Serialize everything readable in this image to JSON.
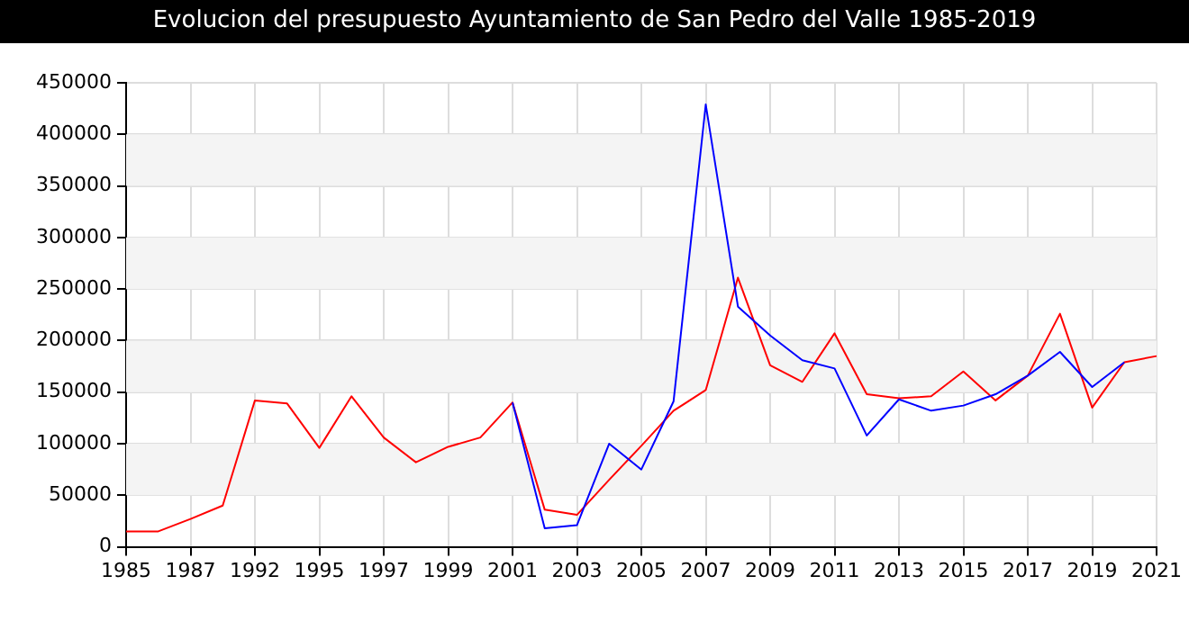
{
  "chart_data": {
    "type": "line",
    "title": "Evolucion del presupuesto Ayuntamiento de San Pedro del Valle 1985-2019",
    "categories": [
      "1985",
      null,
      "1987",
      null,
      "1992",
      null,
      "1995",
      null,
      "1997",
      null,
      "1999",
      null,
      "2001",
      null,
      "2003",
      null,
      "2005",
      null,
      "2007",
      null,
      "2009",
      null,
      "2011",
      null,
      "2013",
      null,
      "2015",
      null,
      "2017",
      null,
      "2019",
      null,
      "2021"
    ],
    "series": [
      {
        "color": "#ff0000",
        "values": [
          15000,
          15000,
          27000,
          40000,
          142000,
          139000,
          96000,
          146000,
          106000,
          82000,
          97000,
          106000,
          140000,
          36000,
          31000,
          65000,
          98000,
          132000,
          152000,
          261000,
          176000,
          160000,
          207000,
          148000,
          144000,
          146000,
          170000,
          142000,
          166000,
          226000,
          135000,
          179000,
          185000
        ]
      },
      {
        "color": "#0000ff",
        "values": [
          null,
          null,
          null,
          null,
          null,
          null,
          null,
          null,
          null,
          null,
          null,
          null,
          140000,
          18000,
          21000,
          100000,
          75000,
          141000,
          429000,
          233000,
          205000,
          181000,
          173000,
          108000,
          143000,
          132000,
          137000,
          148000,
          166000,
          189000,
          155000,
          179000,
          null
        ]
      }
    ],
    "ylim": [
      0,
      450000
    ],
    "yticks": [
      0,
      50000,
      100000,
      150000,
      200000,
      250000,
      300000,
      350000,
      400000,
      450000
    ],
    "grid": true,
    "marker": "none",
    "line_style": "solid"
  }
}
